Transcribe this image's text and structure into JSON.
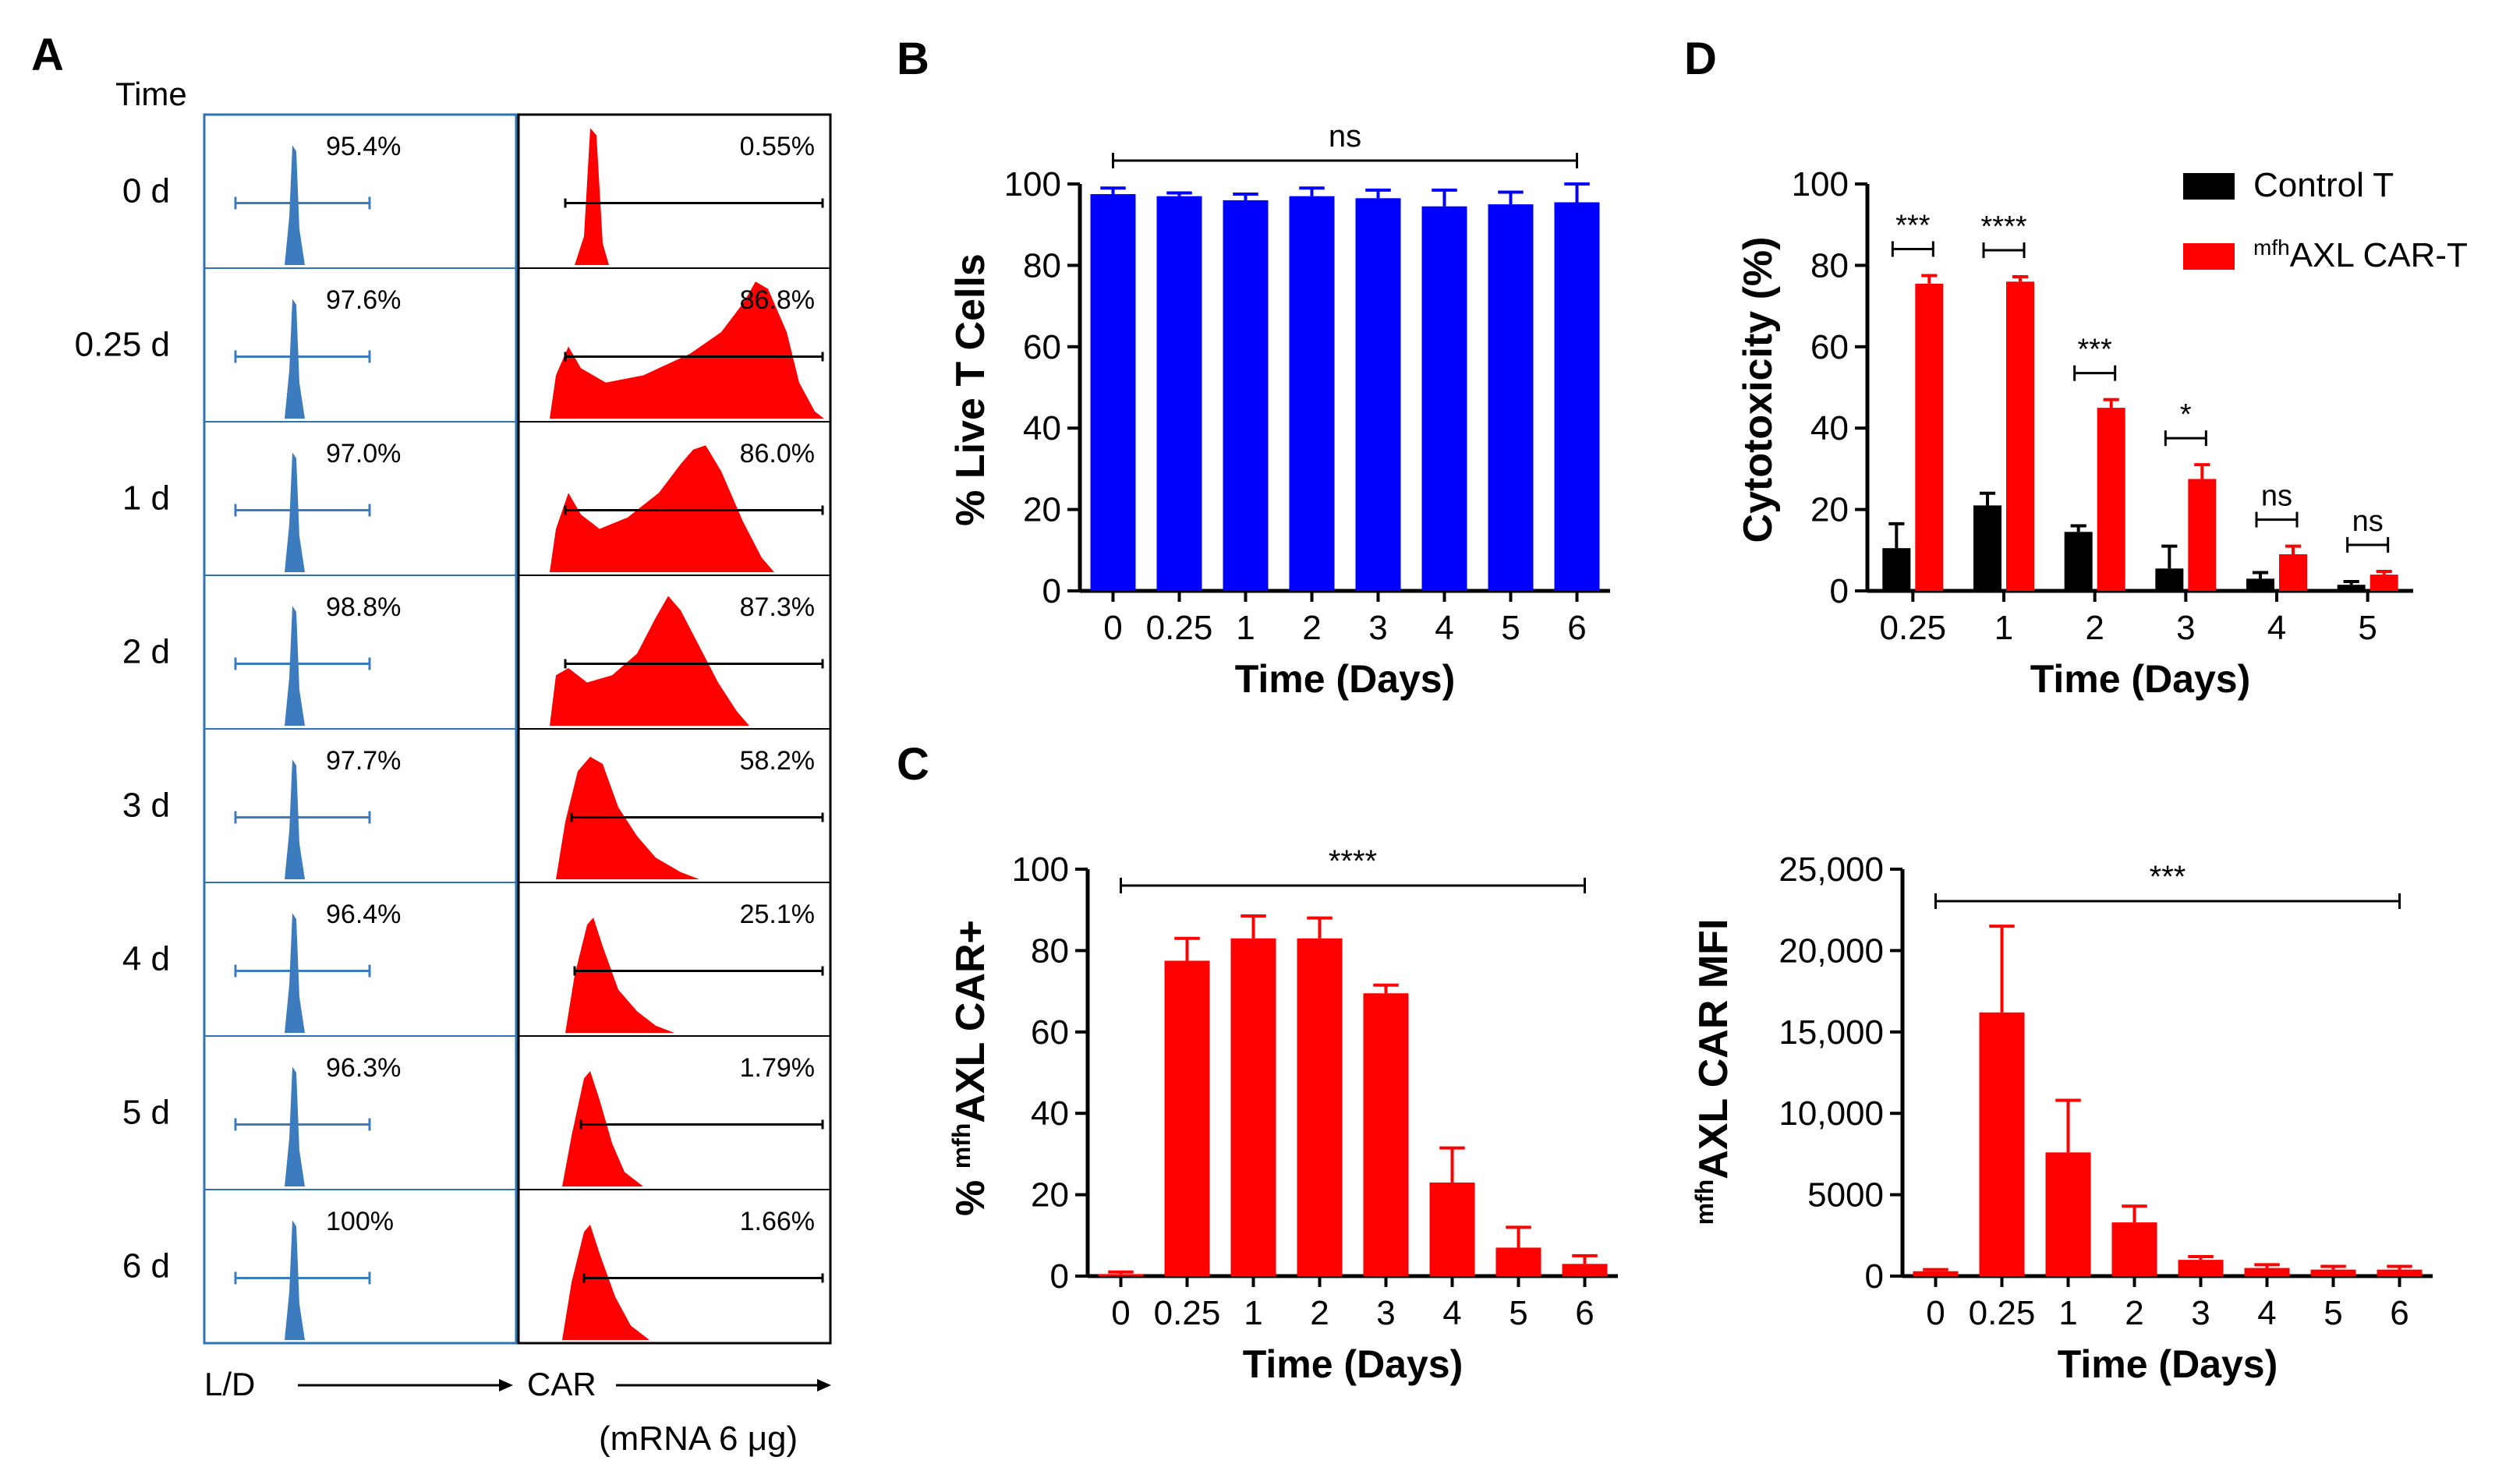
{
  "colors": {
    "blue_hist": "#3d7bbf",
    "blue_bar": "#0000ff",
    "red": "#ff0000",
    "black": "#000000",
    "panel_blue_border": "#2e74b5"
  },
  "panelA": {
    "letter": "A",
    "time_header": "Time",
    "rows": [
      {
        "time": "0 d",
        "ld_pct": "95.4%",
        "car_pct": "0.55%"
      },
      {
        "time": "0.25 d",
        "ld_pct": "97.6%",
        "car_pct": "86.8%"
      },
      {
        "time": "1 d",
        "ld_pct": "97.0%",
        "car_pct": "86.0%"
      },
      {
        "time": "2 d",
        "ld_pct": "98.8%",
        "car_pct": "87.3%"
      },
      {
        "time": "3 d",
        "ld_pct": "97.7%",
        "car_pct": "58.2%"
      },
      {
        "time": "4 d",
        "ld_pct": "96.4%",
        "car_pct": "25.1%"
      },
      {
        "time": "5 d",
        "ld_pct": "96.3%",
        "car_pct": "1.79%"
      },
      {
        "time": "6 d",
        "ld_pct": "100%",
        "car_pct": "1.66%"
      }
    ],
    "ld_axis_label": "L/D",
    "car_axis_label": "CAR",
    "car_axis_sublabel": "(mRNA 6 μg)"
  },
  "chart_data": [
    {
      "panel": "B",
      "type": "bar",
      "categories": [
        "0",
        "0.25",
        "1",
        "2",
        "3",
        "4",
        "5",
        "6"
      ],
      "values": [
        97.5,
        97,
        96,
        97,
        96.5,
        94.5,
        95,
        95.5
      ],
      "errors": [
        1.5,
        0.8,
        1.5,
        2,
        2,
        4,
        3,
        4.5
      ],
      "ylabel": "% Live T Cells",
      "xlabel": "Time (Days)",
      "ylim": [
        0,
        100
      ],
      "yticks": [
        "0",
        "20",
        "40",
        "60",
        "80",
        "100"
      ],
      "significance": "ns",
      "color": "#0000ff"
    },
    {
      "panel": "C",
      "type": "bar",
      "categories": [
        "0",
        "0.25",
        "1",
        "2",
        "3",
        "4",
        "5",
        "6"
      ],
      "values": [
        0.5,
        77.5,
        83,
        83,
        69.5,
        23,
        7,
        3
      ],
      "errors": [
        0.5,
        5.5,
        5.5,
        5,
        2,
        8.5,
        5,
        2
      ],
      "ylabel_prefix": "% ",
      "ylabel_sup": "mfh",
      "ylabel_main": "AXL CAR+",
      "xlabel": "Time (Days)",
      "ylim": [
        0,
        100
      ],
      "yticks": [
        "0",
        "20",
        "40",
        "60",
        "80",
        "100"
      ],
      "significance": "****",
      "color": "#ff0000"
    },
    {
      "panel": "C2",
      "type": "bar",
      "categories": [
        "0",
        "0.25",
        "1",
        "2",
        "3",
        "4",
        "5",
        "6"
      ],
      "values": [
        300,
        16200,
        7600,
        3300,
        1000,
        500,
        400,
        400
      ],
      "errors": [
        100,
        5300,
        3200,
        1000,
        200,
        200,
        200,
        200
      ],
      "ylabel_sup": "mfh",
      "ylabel_main": "AXL CAR MFI",
      "xlabel": "Time (Days)",
      "ylim": [
        0,
        25000
      ],
      "yticks": [
        "0",
        "5000",
        "10,000",
        "15,000",
        "20,000",
        "25,000"
      ],
      "significance": "***",
      "color": "#ff0000"
    },
    {
      "panel": "D",
      "type": "bar",
      "categories": [
        "0.25",
        "1",
        "2",
        "3",
        "4",
        "5"
      ],
      "series": [
        {
          "name": "Control T",
          "values": [
            10.5,
            21,
            14.5,
            5.5,
            3,
            1.5
          ],
          "errors": [
            6,
            3,
            1.5,
            5.5,
            1.5,
            0.8
          ],
          "color": "#000000"
        },
        {
          "name": "AXL CAR-T",
          "name_sup": "mfh",
          "values": [
            75.5,
            76,
            45,
            27.5,
            9,
            4
          ],
          "errors": [
            2,
            1.2,
            2,
            3.5,
            2,
            0.8
          ],
          "color": "#ff0000"
        }
      ],
      "significance": [
        "***",
        "****",
        "***",
        "*",
        "ns",
        "ns"
      ],
      "ylabel": "Cytotoxicity (%)",
      "xlabel": "Time (Days)",
      "ylim": [
        0,
        100
      ],
      "yticks": [
        "0",
        "20",
        "40",
        "60",
        "80",
        "100"
      ],
      "legend_position": "top-right"
    }
  ],
  "panel_letters": {
    "B": "B",
    "C": "C",
    "D": "D"
  }
}
